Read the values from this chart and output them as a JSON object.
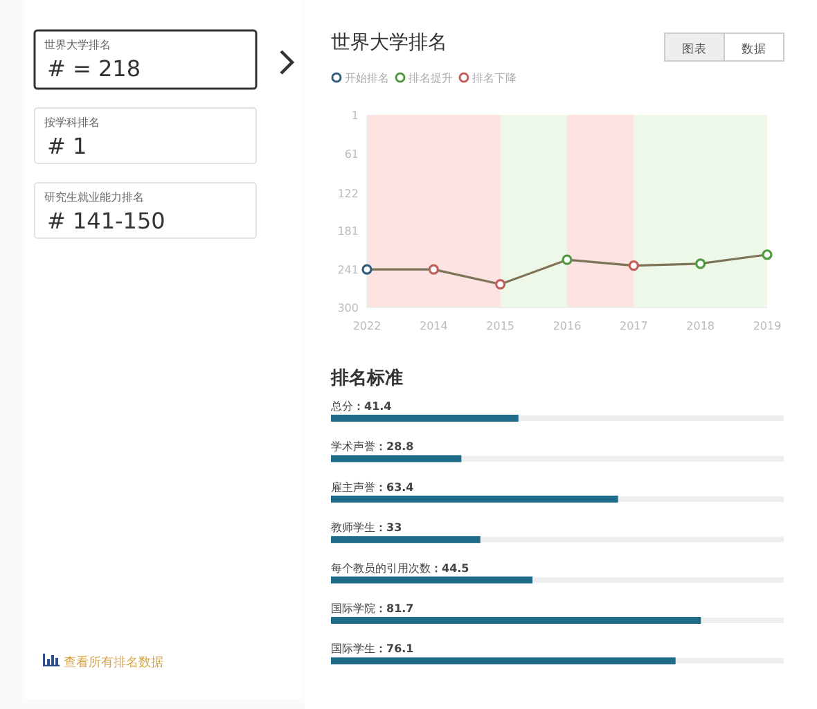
{
  "chart_data": [
    {
      "type": "other",
      "annotations": [
        "世界大学排名",
        "# = 218",
        "按学科排名",
        "# 1",
        "研究生就业能力排名",
        "# 141-150",
        "查看所有排名数据"
      ]
    },
    {
      "type": "line",
      "title": "世界大学排名",
      "categories": [
        "2022",
        "2014",
        "2015",
        "2016",
        "2017",
        "2018",
        "2019"
      ],
      "ylim": [
        300,
        1
      ],
      "yticks": [
        1,
        61,
        122,
        181,
        241,
        300
      ],
      "grid": false,
      "legend": "top left",
      "line_style": "solid",
      "series": [
        {
          "type": "line",
          "marker": "none",
          "color": "#7d7458",
          "values": [
            241,
            241,
            264,
            226,
            235,
            232,
            218
          ]
        },
        {
          "type": "scatter",
          "marker": "circle",
          "name": "开始排名",
          "color": "#2f5f7a",
          "values": [
            241,
            null,
            null,
            null,
            null,
            null,
            null
          ]
        },
        {
          "type": "scatter",
          "marker": "circle",
          "name": "排名提升",
          "color": "#4f9a3f",
          "values": [
            null,
            null,
            null,
            226,
            null,
            232,
            218
          ]
        },
        {
          "type": "scatter",
          "marker": "circle",
          "name": "排名下降",
          "color": "#c0605a",
          "values": [
            null,
            241,
            264,
            null,
            235,
            null,
            null
          ]
        }
      ],
      "bands": [
        {
          "axis": "x",
          "from": "2022",
          "to": "2015",
          "color": "#fde2e2"
        },
        {
          "axis": "x",
          "from": "2015",
          "to": "2016",
          "color": "#edf8e9"
        },
        {
          "axis": "x",
          "from": "2016",
          "to": "2017",
          "color": "#fde2e2"
        },
        {
          "axis": "x",
          "from": "2017",
          "to": "2019",
          "color": "#edf8e9"
        }
      ],
      "annotations": [
        "图表",
        "数据"
      ]
    },
    {
      "type": "bar",
      "orientation": "horizontal",
      "title": "排名标准",
      "categories": [
        "总分",
        "学术声誉",
        "雇主声誉",
        "教师学生",
        "每个教员的引用次数",
        "国际学院",
        "国际学生"
      ],
      "values": [
        41.4,
        28.8,
        63.4,
        33,
        44.5,
        81.7,
        76.1
      ],
      "value_labels": [
        "：41.4",
        "：28.8",
        "：63.4",
        "：33",
        "：44.5",
        "：81.7",
        "：76.1"
      ],
      "color": "#1f6b8a",
      "xlim": [
        0,
        100
      ],
      "tick_labels": false
    }
  ]
}
